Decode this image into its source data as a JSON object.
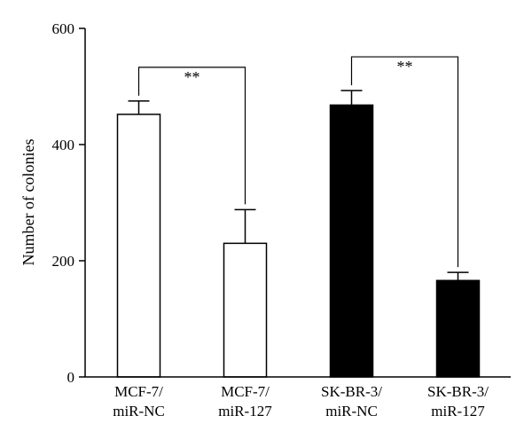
{
  "chart_data": {
    "type": "bar",
    "title": "",
    "xlabel": "",
    "ylabel": "Number of colonies",
    "ylim": [
      0,
      600
    ],
    "yticks": [
      0,
      200,
      400,
      600
    ],
    "grid": false,
    "categories": [
      [
        "MCF-7/",
        "miR-NC"
      ],
      [
        "MCF-7/",
        "miR-127"
      ],
      [
        "SK-BR-3/",
        "miR-NC"
      ],
      [
        "SK-BR-3/",
        "miR-127"
      ]
    ],
    "values": [
      452,
      230,
      468,
      166
    ],
    "errors": [
      23,
      58,
      25,
      14
    ],
    "bar_fill": [
      "#ffffff",
      "#ffffff",
      "#000000",
      "#000000"
    ],
    "significance": [
      {
        "from": 0,
        "to": 1,
        "label": "**"
      },
      {
        "from": 2,
        "to": 3,
        "label": "**"
      }
    ]
  }
}
